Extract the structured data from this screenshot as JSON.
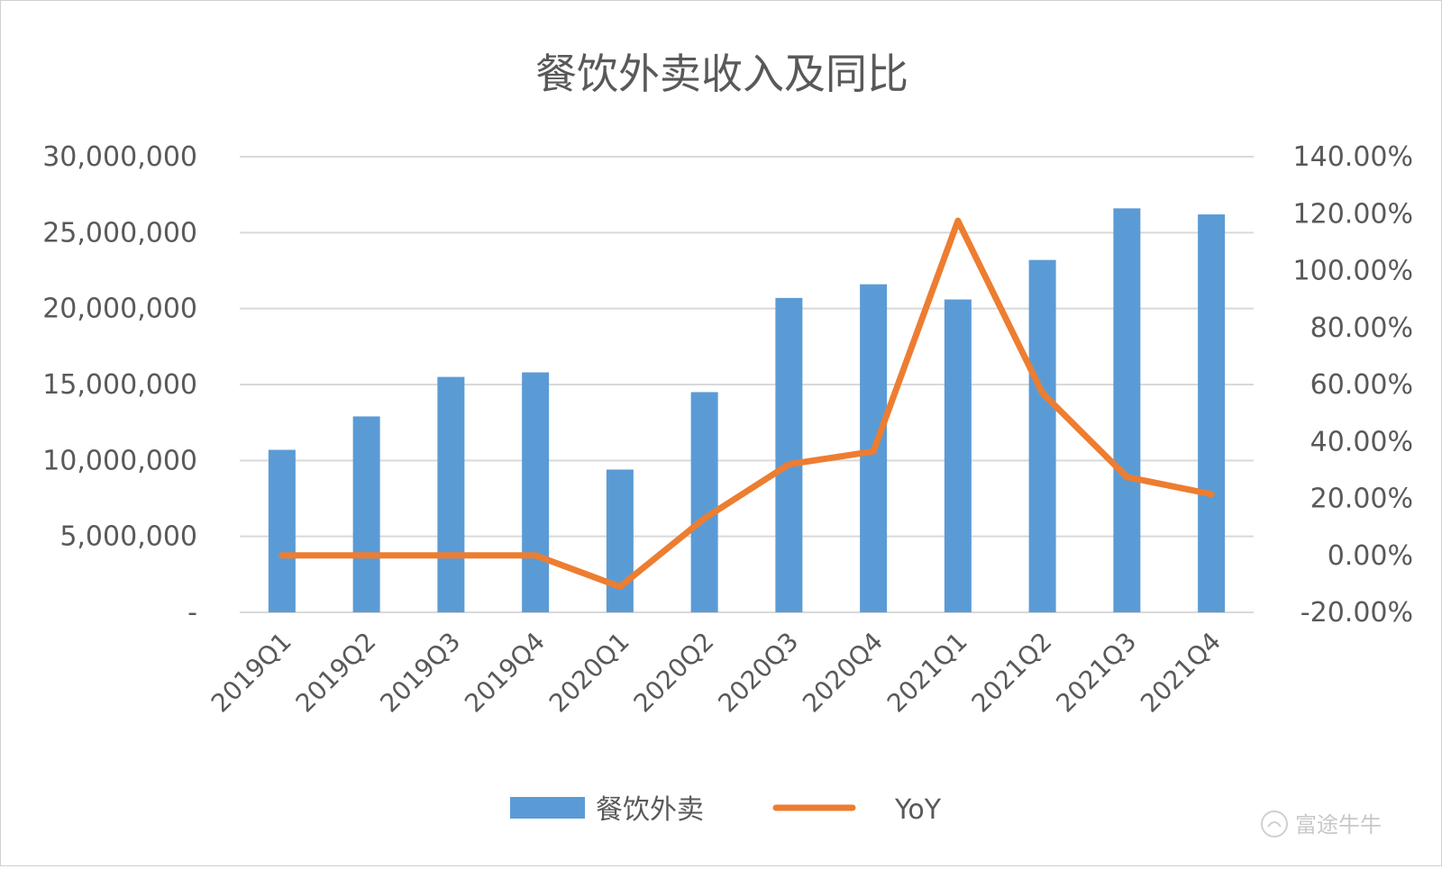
{
  "chart_data": {
    "type": "bar",
    "title": "餐饮外卖收入及同比",
    "categories": [
      "2019Q1",
      "2019Q2",
      "2019Q3",
      "2019Q4",
      "2020Q1",
      "2020Q2",
      "2020Q3",
      "2020Q4",
      "2021Q1",
      "2021Q2",
      "2021Q3",
      "2021Q4"
    ],
    "series": [
      {
        "name": "餐饮外卖",
        "type": "bar",
        "axis": "left",
        "color": "#5B9BD5",
        "values": [
          10700000,
          12900000,
          15500000,
          15800000,
          9400000,
          14500000,
          20700000,
          21600000,
          20600000,
          23200000,
          26600000,
          26200000
        ]
      },
      {
        "name": "YoY",
        "type": "line",
        "axis": "right",
        "color": "#ED7D31",
        "values": [
          0.0,
          0.0,
          0.0,
          0.0,
          -11.0,
          13.0,
          32.0,
          36.5,
          117.5,
          57.0,
          27.5,
          21.5
        ]
      }
    ],
    "y_left": {
      "ylim": [
        0,
        30000000
      ],
      "ticks": [
        0,
        5000000,
        10000000,
        15000000,
        20000000,
        25000000,
        30000000
      ],
      "tick_labels": [
        "-",
        "5,000,000",
        "10,000,000",
        "15,000,000",
        "20,000,000",
        "25,000,000",
        "30,000,000"
      ]
    },
    "y_right": {
      "ylim": [
        -20,
        140
      ],
      "ticks": [
        -20,
        0,
        20,
        40,
        60,
        80,
        100,
        120,
        140
      ],
      "tick_labels": [
        "-20.00%",
        "0.00%",
        "20.00%",
        "40.00%",
        "60.00%",
        "80.00%",
        "100.00%",
        "120.00%",
        "140.00%"
      ]
    },
    "grid": true,
    "legend_position": "bottom"
  },
  "watermark": {
    "text": "富途牛牛"
  }
}
